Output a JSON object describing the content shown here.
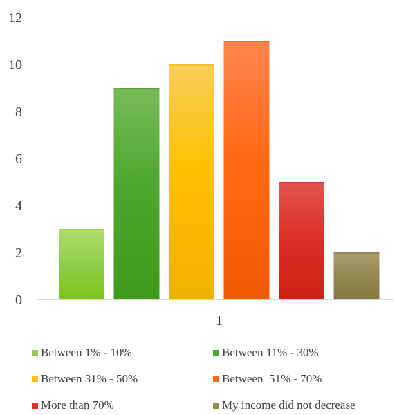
{
  "chart_data": {
    "type": "bar",
    "categories": [
      "1"
    ],
    "series": [
      {
        "name": "Between 1% - 10%",
        "values": [
          3
        ],
        "color": "#92d050",
        "color_dark": "#7cc316",
        "color_light": "#b0dd6a"
      },
      {
        "name": "Between 11% - 30%",
        "values": [
          9
        ],
        "color": "#4ea72e",
        "color_dark": "#3f9a1c",
        "color_light": "#76bb55"
      },
      {
        "name": "Between 31% - 50%",
        "values": [
          10
        ],
        "color": "#ffc000",
        "color_dark": "#f0b000",
        "color_light": "#f7ce5a"
      },
      {
        "name": "Between  51% - 70%",
        "values": [
          11
        ],
        "color": "#ff6a13",
        "color_dark": "#f05a00",
        "color_light": "#ff8450"
      },
      {
        "name": "More than 70%",
        "values": [
          5
        ],
        "color": "#e0312a",
        "color_dark": "#cc2015",
        "color_light": "#e05550"
      },
      {
        "name": "My income did not decrease",
        "values": [
          2
        ],
        "color": "#938953",
        "color_dark": "#857a44",
        "color_light": "#aa9f70"
      }
    ],
    "ylim": [
      0,
      12
    ],
    "yticks": [
      "0",
      "2",
      "4",
      "6",
      "8",
      "10",
      "12"
    ],
    "grid": false,
    "legend_position": "bottom",
    "title": "",
    "xlabel": "",
    "ylabel": ""
  }
}
